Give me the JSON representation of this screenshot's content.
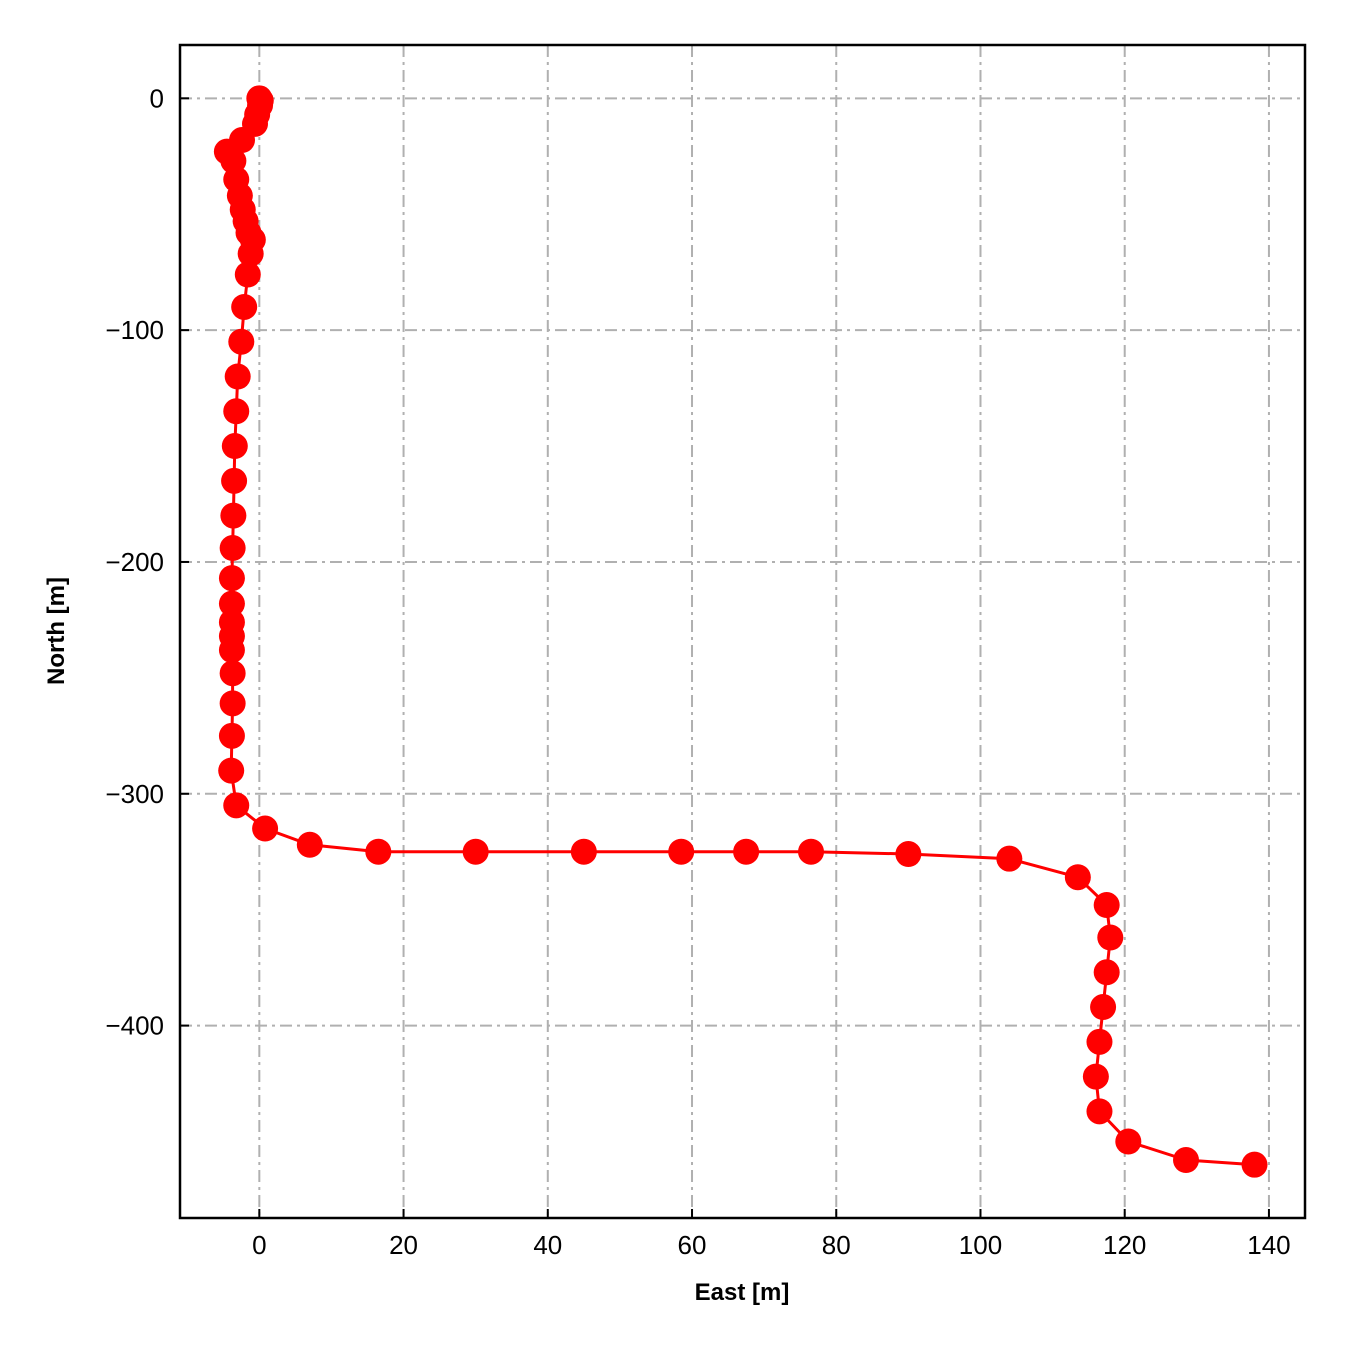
{
  "chart_data": {
    "type": "line",
    "title": "",
    "xlabel": "East [m]",
    "ylabel": "North [m]",
    "xlim": [
      -11,
      145
    ],
    "ylim": [
      -483,
      23
    ],
    "xticks": [
      0,
      20,
      40,
      60,
      80,
      100,
      120,
      140
    ],
    "yticks": [
      0,
      -100,
      -200,
      -300,
      -400
    ],
    "xtick_labels": [
      "0",
      "20",
      "40",
      "60",
      "80",
      "100",
      "120",
      "140"
    ],
    "ytick_labels": [
      "0",
      "−100",
      "−200",
      "−300",
      "−400"
    ],
    "grid": true,
    "color": "#ff0000",
    "marker": "circle",
    "series": [
      {
        "x": [
          0,
          0.2,
          0.1,
          -0.3,
          -0.6,
          -2.4,
          -4.5,
          -3.6,
          -3.2,
          -2.7,
          -2.3,
          -1.9,
          -1.5,
          -0.9,
          -1.2,
          -1.6,
          -2.1,
          -2.5,
          -3.0,
          -3.2,
          -3.4,
          -3.5,
          -3.6,
          -3.7,
          -3.8,
          -3.8,
          -3.8,
          -3.8,
          -3.8,
          -3.7,
          -3.7,
          -3.8,
          -3.9,
          -3.2,
          0.8,
          7,
          16.5,
          30,
          45,
          58.5,
          67.5,
          76.5,
          90,
          104,
          113.5,
          117.5,
          118,
          117.5,
          117,
          116.5,
          116,
          116.5,
          120.5,
          128.5,
          138
        ],
        "y": [
          0,
          -1,
          -3,
          -7,
          -11,
          -18,
          -23,
          -27,
          -35,
          -42,
          -48,
          -53,
          -58,
          -61,
          -67,
          -76,
          -90,
          -105,
          -120,
          -135,
          -150,
          -165,
          -180,
          -194,
          -207,
          -218,
          -226,
          -232,
          -238,
          -248,
          -261,
          -275,
          -290,
          -305,
          -315,
          -322,
          -325,
          -325,
          -325,
          -325,
          -325,
          -325,
          -326,
          -328,
          -336,
          -348,
          -362,
          -377,
          -392,
          -407,
          -422,
          -437,
          -450,
          -458,
          -460
        ]
      }
    ]
  }
}
